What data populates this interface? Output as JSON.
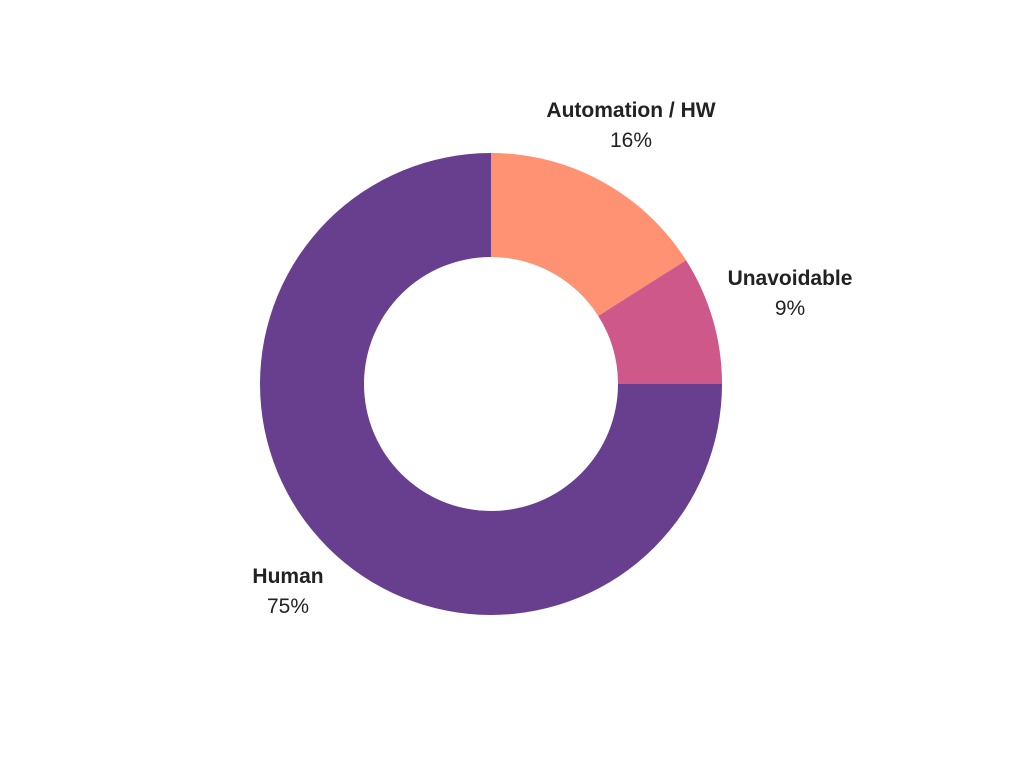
{
  "chart_data": {
    "type": "pie",
    "donut": true,
    "start_angle_deg": 0,
    "direction": "clockwise",
    "slices": [
      {
        "label": "Automation / HW",
        "value": 16,
        "value_label": "16%",
        "color": "#FF9272"
      },
      {
        "label": "Unavoidable",
        "value": 9,
        "value_label": "9%",
        "color": "#CD5889"
      },
      {
        "label": "Human",
        "value": 75,
        "value_label": "75%",
        "color": "#673F8E"
      }
    ]
  }
}
